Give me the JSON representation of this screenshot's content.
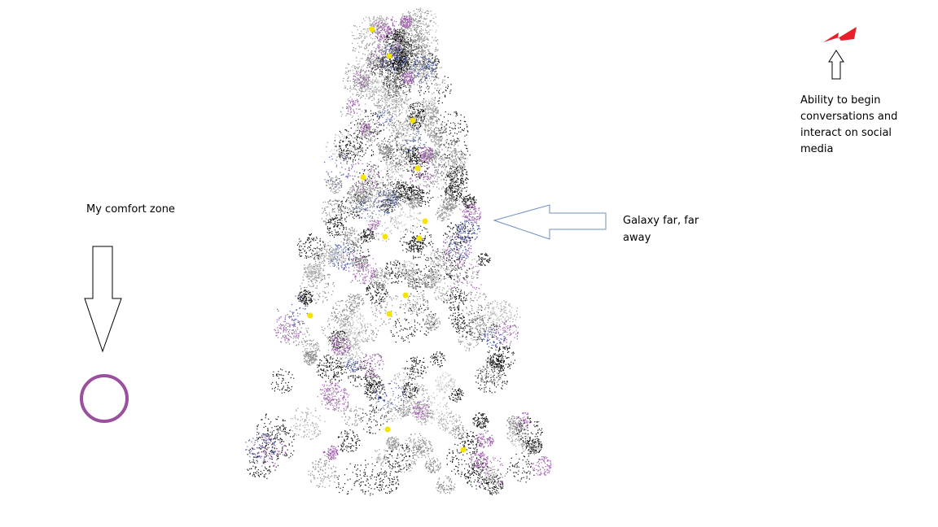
{
  "labels": {
    "comfort_zone": "My comfort zone",
    "galaxy": "Galaxy far, far away",
    "ability": "Ability to begin conversations and interact on social media"
  }
}
